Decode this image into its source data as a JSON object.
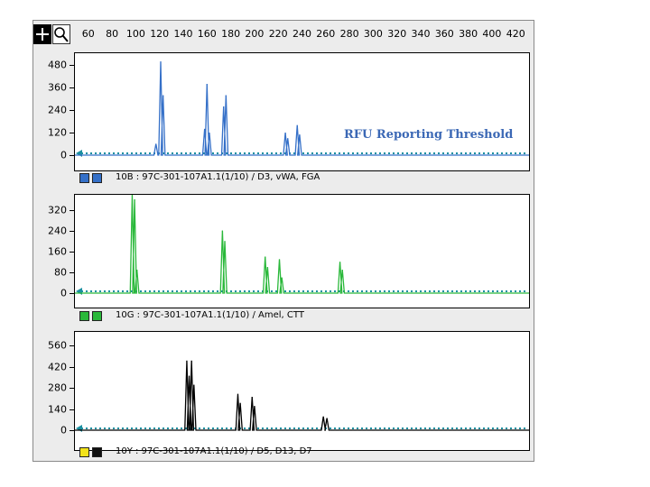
{
  "annotation": {
    "threshold_label": "RFU Reporting Threshold",
    "color": "#3b68b5",
    "dotted_color": "#1a8fa0"
  },
  "toolbar": {
    "cross_glyph": "+",
    "cross_icon": "crosshair-icon",
    "zoom_icon": "magnifier-icon"
  },
  "chart_data": [
    {
      "type": "line",
      "x_ticks": [
        60,
        80,
        100,
        120,
        140,
        160,
        180,
        200,
        220,
        240,
        260,
        280,
        300,
        320,
        340,
        360,
        380,
        400,
        420
      ],
      "xlim": [
        48,
        432
      ],
      "y_ticks": [
        0,
        120,
        240,
        360,
        480
      ],
      "ylim": [
        0,
        520
      ],
      "threshold": 0,
      "color": "#3570c8",
      "swatches": [
        "#3570c8",
        "#3570c8"
      ],
      "caption": "10B : 97C-301-107A1.1(1/10) / D3, vWA, FGA",
      "peaks": [
        [
          117,
          60
        ],
        [
          121,
          500
        ],
        [
          123,
          320
        ],
        [
          158,
          140
        ],
        [
          160,
          380
        ],
        [
          162,
          120
        ],
        [
          174,
          260
        ],
        [
          176,
          320
        ],
        [
          226,
          120
        ],
        [
          228,
          90
        ],
        [
          236,
          160
        ],
        [
          238,
          110
        ]
      ]
    },
    {
      "type": "line",
      "x_ticks": [
        60,
        80,
        100,
        120,
        140,
        160,
        180,
        200,
        220,
        240,
        260,
        280,
        300,
        320,
        340,
        360,
        380,
        400,
        420
      ],
      "xlim": [
        48,
        432
      ],
      "y_ticks": [
        0,
        80,
        160,
        240,
        320
      ],
      "ylim": [
        0,
        360
      ],
      "threshold": 0,
      "color": "#2ab83a",
      "swatches": [
        "#2ab83a",
        "#2ab83a"
      ],
      "caption": "10G : 97C-301-107A1.1(1/10) / Amel, CTT",
      "peaks": [
        [
          97,
          400
        ],
        [
          99,
          360
        ],
        [
          101,
          90
        ],
        [
          173,
          240
        ],
        [
          175,
          200
        ],
        [
          209,
          140
        ],
        [
          211,
          100
        ],
        [
          221,
          130
        ],
        [
          223,
          60
        ],
        [
          272,
          120
        ],
        [
          274,
          90
        ]
      ]
    },
    {
      "type": "line",
      "x_ticks": [
        60,
        80,
        100,
        120,
        140,
        160,
        180,
        200,
        220,
        240,
        260,
        280,
        300,
        320,
        340,
        360,
        380,
        400,
        420
      ],
      "xlim": [
        48,
        432
      ],
      "y_ticks": [
        0,
        140,
        280,
        420,
        560
      ],
      "ylim": [
        0,
        620
      ],
      "threshold": 0,
      "color": "#000000",
      "swatches": [
        "#f2e21a",
        "#111111"
      ],
      "caption": "10Y : 97C-301-107A1.1(1/10) / D5, D13, D7",
      "peaks": [
        [
          143,
          460
        ],
        [
          145,
          360
        ],
        [
          147,
          460
        ],
        [
          149,
          300
        ],
        [
          186,
          240
        ],
        [
          188,
          180
        ],
        [
          198,
          220
        ],
        [
          200,
          160
        ],
        [
          258,
          90
        ],
        [
          261,
          80
        ]
      ]
    }
  ]
}
